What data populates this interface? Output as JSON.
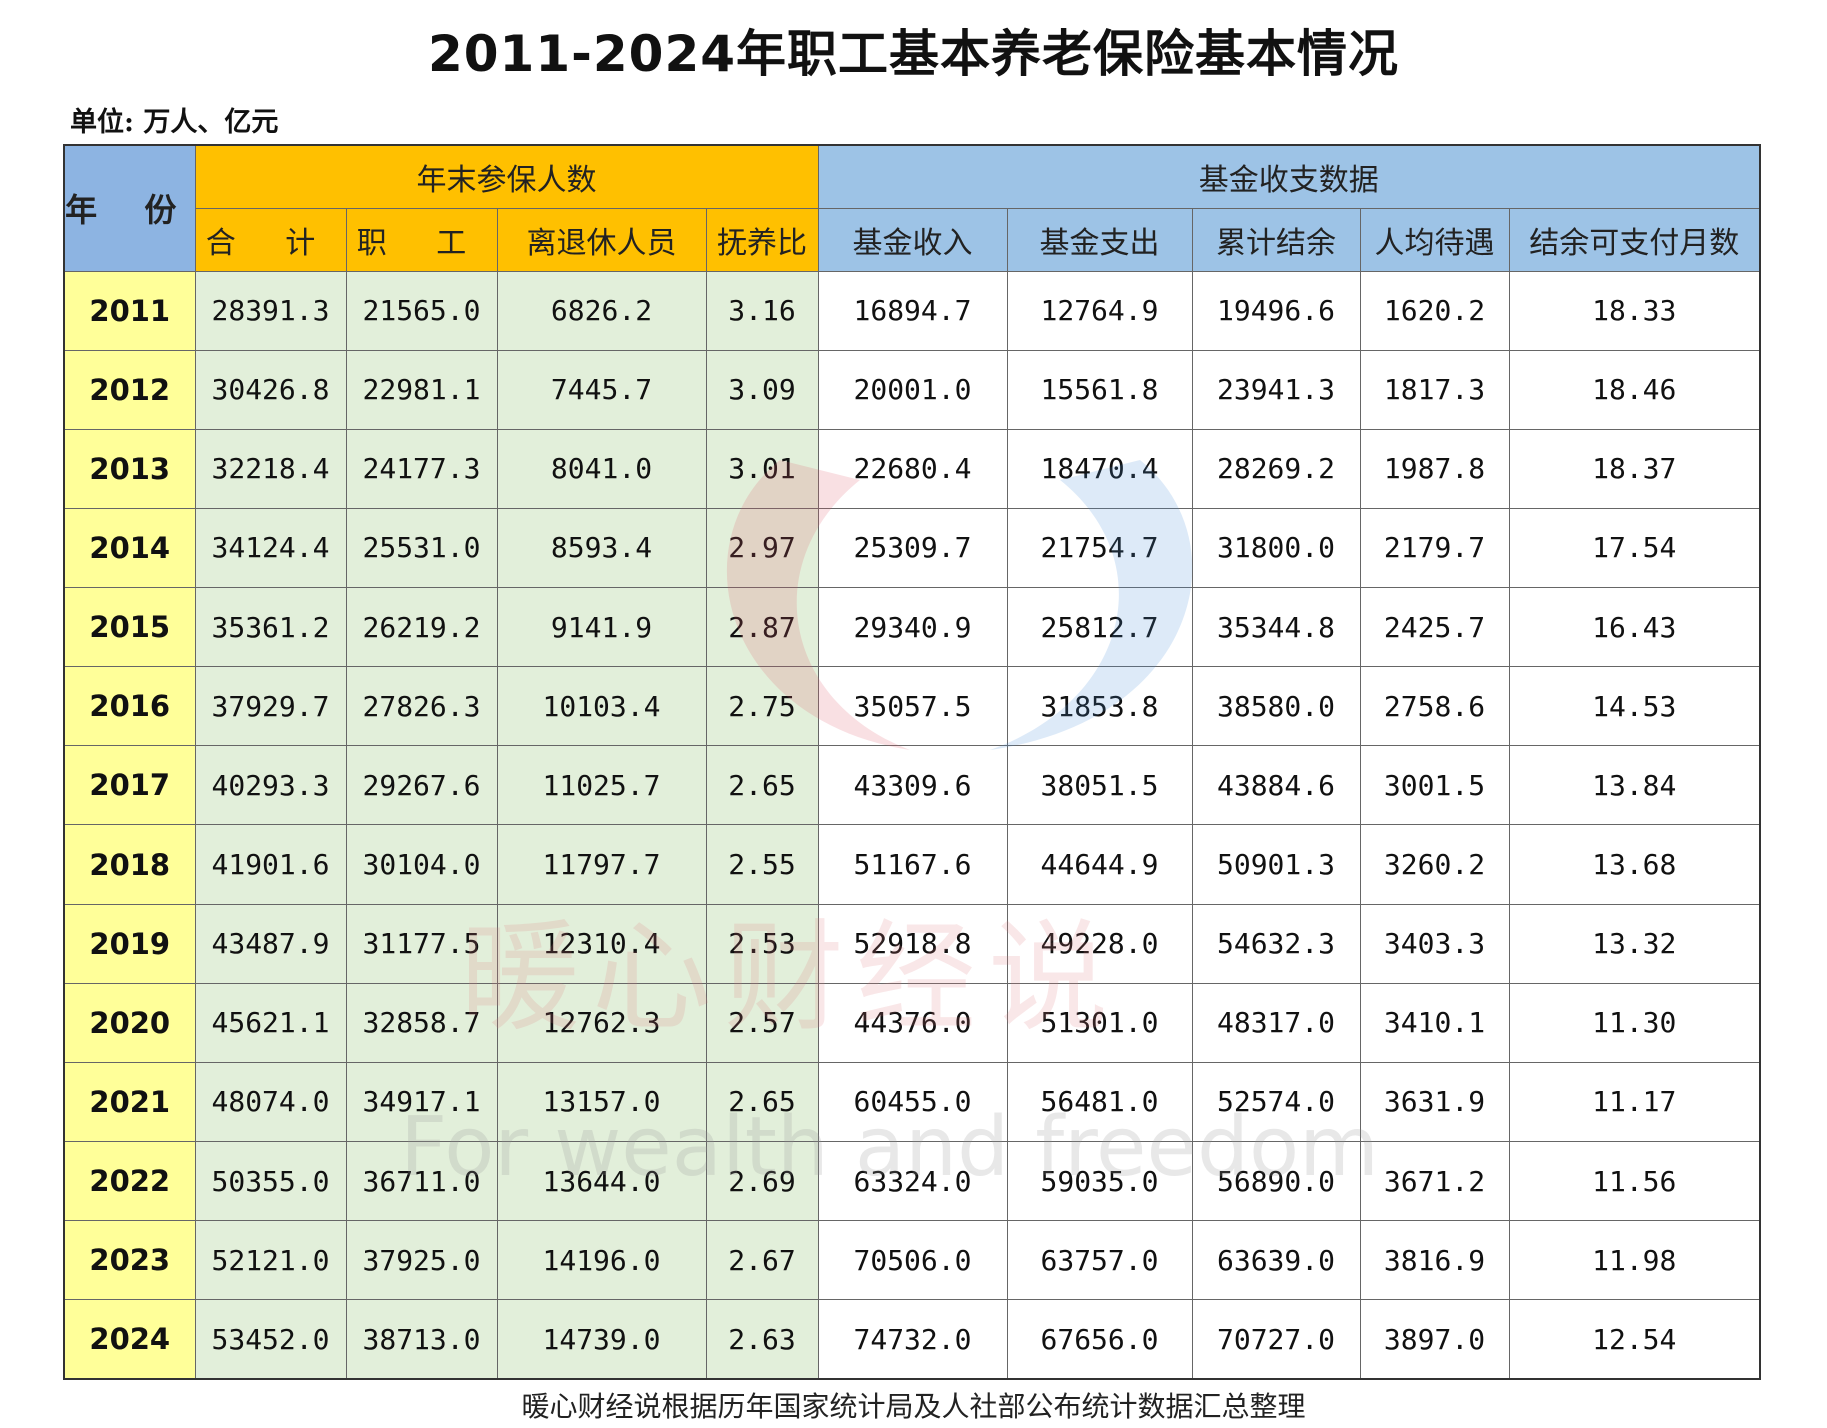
{
  "title": "2011-2024年职工基本养老保险基本情况",
  "unit": "单位: 万人、亿元",
  "watermark": {
    "cn": "暖心财经说",
    "en": "For wealth and freedom"
  },
  "header": {
    "year": "年 份",
    "group_insured": "年末参保人数",
    "group_fund": "基金收支数据",
    "columns": [
      "合 计",
      "职 工",
      "离退休人员",
      "抚养比",
      "基金收入",
      "基金支出",
      "累计结余",
      "人均待遇",
      "结余可支付月数"
    ]
  },
  "rows": [
    {
      "year": "2011",
      "total": "28391.3",
      "workers": "21565.0",
      "retirees": "6826.2",
      "ratio": "3.16",
      "income": "16894.7",
      "expense": "12764.9",
      "balance": "19496.6",
      "per_capita": "1620.2",
      "months": "18.33"
    },
    {
      "year": "2012",
      "total": "30426.8",
      "workers": "22981.1",
      "retirees": "7445.7",
      "ratio": "3.09",
      "income": "20001.0",
      "expense": "15561.8",
      "balance": "23941.3",
      "per_capita": "1817.3",
      "months": "18.46"
    },
    {
      "year": "2013",
      "total": "32218.4",
      "workers": "24177.3",
      "retirees": "8041.0",
      "ratio": "3.01",
      "income": "22680.4",
      "expense": "18470.4",
      "balance": "28269.2",
      "per_capita": "1987.8",
      "months": "18.37"
    },
    {
      "year": "2014",
      "total": "34124.4",
      "workers": "25531.0",
      "retirees": "8593.4",
      "ratio": "2.97",
      "income": "25309.7",
      "expense": "21754.7",
      "balance": "31800.0",
      "per_capita": "2179.7",
      "months": "17.54"
    },
    {
      "year": "2015",
      "total": "35361.2",
      "workers": "26219.2",
      "retirees": "9141.9",
      "ratio": "2.87",
      "income": "29340.9",
      "expense": "25812.7",
      "balance": "35344.8",
      "per_capita": "2425.7",
      "months": "16.43"
    },
    {
      "year": "2016",
      "total": "37929.7",
      "workers": "27826.3",
      "retirees": "10103.4",
      "ratio": "2.75",
      "income": "35057.5",
      "expense": "31853.8",
      "balance": "38580.0",
      "per_capita": "2758.6",
      "months": "14.53"
    },
    {
      "year": "2017",
      "total": "40293.3",
      "workers": "29267.6",
      "retirees": "11025.7",
      "ratio": "2.65",
      "income": "43309.6",
      "expense": "38051.5",
      "balance": "43884.6",
      "per_capita": "3001.5",
      "months": "13.84"
    },
    {
      "year": "2018",
      "total": "41901.6",
      "workers": "30104.0",
      "retirees": "11797.7",
      "ratio": "2.55",
      "income": "51167.6",
      "expense": "44644.9",
      "balance": "50901.3",
      "per_capita": "3260.2",
      "months": "13.68"
    },
    {
      "year": "2019",
      "total": "43487.9",
      "workers": "31177.5",
      "retirees": "12310.4",
      "ratio": "2.53",
      "income": "52918.8",
      "expense": "49228.0",
      "balance": "54632.3",
      "per_capita": "3403.3",
      "months": "13.32"
    },
    {
      "year": "2020",
      "total": "45621.1",
      "workers": "32858.7",
      "retirees": "12762.3",
      "ratio": "2.57",
      "income": "44376.0",
      "expense": "51301.0",
      "balance": "48317.0",
      "per_capita": "3410.1",
      "months": "11.30"
    },
    {
      "year": "2021",
      "total": "48074.0",
      "workers": "34917.1",
      "retirees": "13157.0",
      "ratio": "2.65",
      "income": "60455.0",
      "expense": "56481.0",
      "balance": "52574.0",
      "per_capita": "3631.9",
      "months": "11.17"
    },
    {
      "year": "2022",
      "total": "50355.0",
      "workers": "36711.0",
      "retirees": "13644.0",
      "ratio": "2.69",
      "income": "63324.0",
      "expense": "59035.0",
      "balance": "56890.0",
      "per_capita": "3671.2",
      "months": "11.56"
    },
    {
      "year": "2023",
      "total": "52121.0",
      "workers": "37925.0",
      "retirees": "14196.0",
      "ratio": "2.67",
      "income": "70506.0",
      "expense": "63757.0",
      "balance": "63639.0",
      "per_capita": "3816.9",
      "months": "11.98"
    },
    {
      "year": "2024",
      "total": "53452.0",
      "workers": "38713.0",
      "retirees": "14739.0",
      "ratio": "2.63",
      "income": "74732.0",
      "expense": "67656.0",
      "balance": "70727.0",
      "per_capita": "3897.0",
      "months": "12.54"
    }
  ],
  "source": "暖心财经说根据历年国家统计局及人社部公布统计数据汇总整理",
  "colors": {
    "year_header": "#8db4e2",
    "insured_header": "#ffc000",
    "fund_header": "#9dc3e6",
    "year_cell": "#ffff99",
    "insured_cell": "#e2efda"
  }
}
